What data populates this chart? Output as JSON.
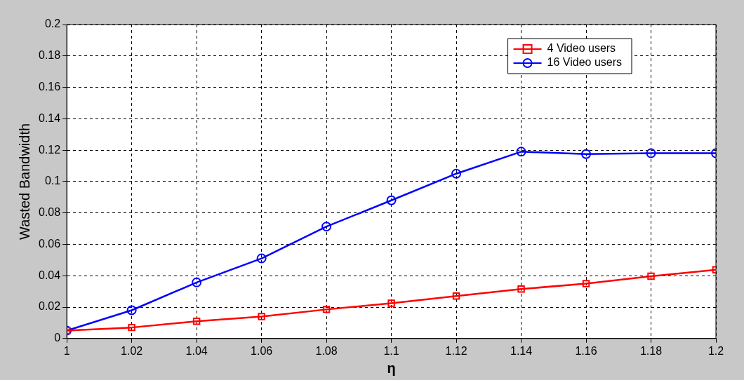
{
  "chart_data": {
    "type": "line",
    "xlabel": "η",
    "ylabel": "Wasted Bandwidth",
    "x": [
      1,
      1.02,
      1.04,
      1.06,
      1.08,
      1.1,
      1.12,
      1.14,
      1.16,
      1.18,
      1.2
    ],
    "series": [
      {
        "name": "4 Video users",
        "color": "#ff0000",
        "marker": "square",
        "values": [
          0.005,
          0.007,
          0.011,
          0.014,
          0.0185,
          0.0225,
          0.027,
          0.0315,
          0.035,
          0.0397,
          0.0438
        ]
      },
      {
        "name": "16 Video users",
        "color": "#0000ff",
        "marker": "circle",
        "values": [
          0.005,
          0.018,
          0.0357,
          0.051,
          0.0713,
          0.088,
          0.105,
          0.119,
          0.1175,
          0.118,
          0.118
        ]
      }
    ],
    "xlim": [
      1,
      1.2
    ],
    "xticks": [
      1,
      1.02,
      1.04,
      1.06,
      1.08,
      1.1,
      1.12,
      1.14,
      1.16,
      1.18,
      1.2
    ],
    "ylim": [
      0,
      0.2
    ],
    "yticks": [
      0,
      0.02,
      0.04,
      0.06,
      0.08,
      0.1,
      0.12,
      0.14,
      0.16,
      0.18,
      0.2
    ],
    "grid": true,
    "legend": "top right",
    "line_style": "solid"
  }
}
